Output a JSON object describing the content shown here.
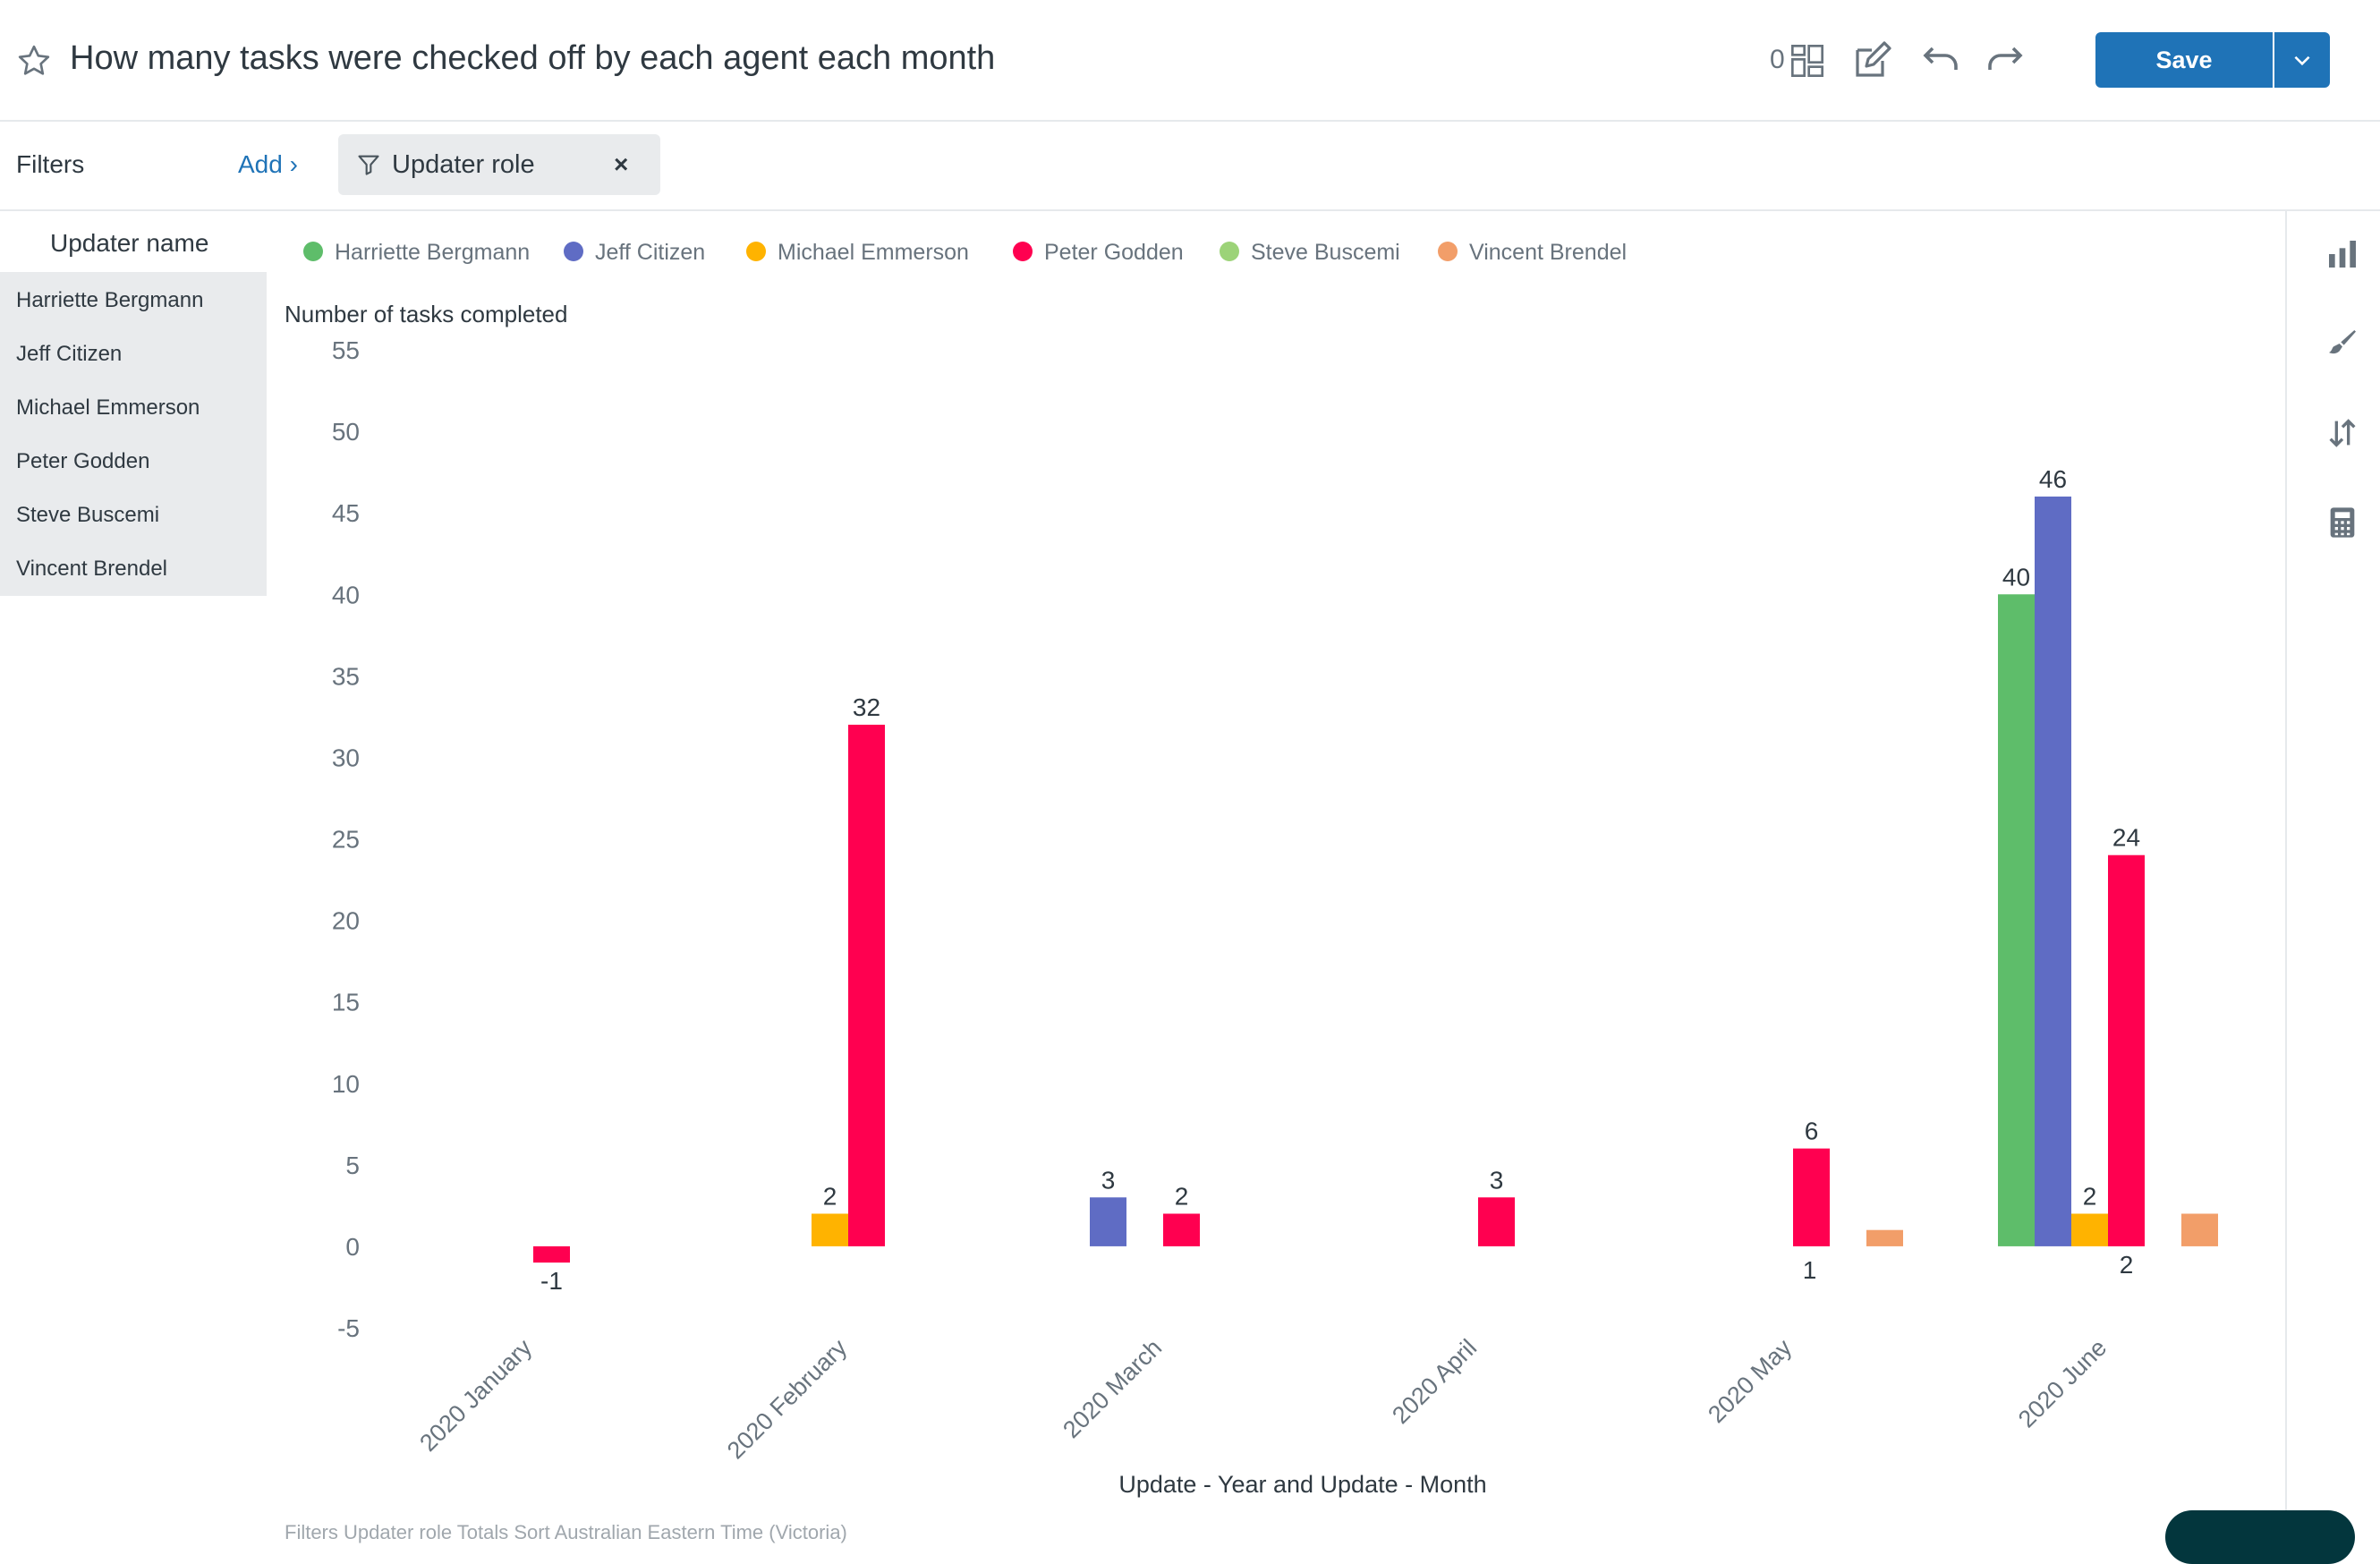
{
  "header": {
    "title": "How many tasks were checked off by each agent each month",
    "widget_count": "0",
    "save_label": "Save"
  },
  "filters": {
    "label": "Filters",
    "add_label": "Add ›",
    "chip_label": "Updater role",
    "chip_remove": "×"
  },
  "rows": {
    "header": "Updater name",
    "items": [
      "Harriette Bergmann",
      "Jeff Citizen",
      "Michael Emmerson",
      "Peter Godden",
      "Steve Buscemi",
      "Vincent Brendel"
    ]
  },
  "footer_text": "Filters   Updater role   Totals   Sort   Australian Eastern Time (Victoria)",
  "colors": {
    "accent": "#1f73b7",
    "Harriette Bergmann": "#5ebd6a",
    "Jeff Citizen": "#5f6cc4",
    "Michael Emmerson": "#ffb300",
    "Peter Godden": "#ff0050",
    "Steve Buscemi": "#9cd378",
    "Vincent Brendel": "#f29e69"
  },
  "chart_data": {
    "type": "bar",
    "title": "",
    "xlabel": "Update - Year and Update - Month",
    "ylabel": "Number of tasks completed",
    "ylim": [
      -5,
      55
    ],
    "yticks": [
      "55",
      "50",
      "45",
      "40",
      "35",
      "30",
      "25",
      "20",
      "15",
      "10",
      "5",
      "0",
      "-5"
    ],
    "categories": [
      "2020 January",
      "2020 February",
      "2020 March",
      "2020 April",
      "2020 May",
      "2020 June"
    ],
    "legend_position": "top-left",
    "series": [
      {
        "name": "Harriette Bergmann",
        "values": [
          null,
          null,
          null,
          null,
          null,
          40
        ]
      },
      {
        "name": "Jeff Citizen",
        "values": [
          null,
          null,
          3,
          null,
          null,
          46
        ]
      },
      {
        "name": "Michael Emmerson",
        "values": [
          null,
          2,
          null,
          null,
          null,
          2
        ]
      },
      {
        "name": "Peter Godden",
        "values": [
          -1,
          32,
          2,
          3,
          6,
          24
        ]
      },
      {
        "name": "Steve Buscemi",
        "values": [
          null,
          null,
          null,
          null,
          null,
          null
        ]
      },
      {
        "name": "Vincent Brendel",
        "values": [
          null,
          null,
          null,
          null,
          1,
          2
        ]
      }
    ],
    "data_labels": [
      {
        "text": "-1",
        "category": "2020 January",
        "series": "Peter Godden"
      },
      {
        "text": "2",
        "category": "2020 February",
        "series": "Michael Emmerson"
      },
      {
        "text": "32",
        "category": "2020 February",
        "series": "Peter Godden"
      },
      {
        "text": "3",
        "category": "2020 March",
        "series": "Jeff Citizen"
      },
      {
        "text": "2",
        "category": "2020 March",
        "series": "Peter Godden"
      },
      {
        "text": "3",
        "category": "2020 April",
        "series": "Peter Godden"
      },
      {
        "text": "6",
        "category": "2020 May",
        "series": "Peter Godden"
      },
      {
        "text": "1",
        "category": "2020 May",
        "series": "Vincent Brendel"
      },
      {
        "text": "40",
        "category": "2020 June",
        "series": "Harriette Bergmann"
      },
      {
        "text": "46",
        "category": "2020 June",
        "series": "Jeff Citizen"
      },
      {
        "text": "2",
        "category": "2020 June",
        "series": "Michael Emmerson"
      },
      {
        "text": "24",
        "category": "2020 June",
        "series": "Peter Godden"
      },
      {
        "text": "2",
        "category": "2020 June",
        "series": "Vincent Brendel"
      }
    ]
  }
}
